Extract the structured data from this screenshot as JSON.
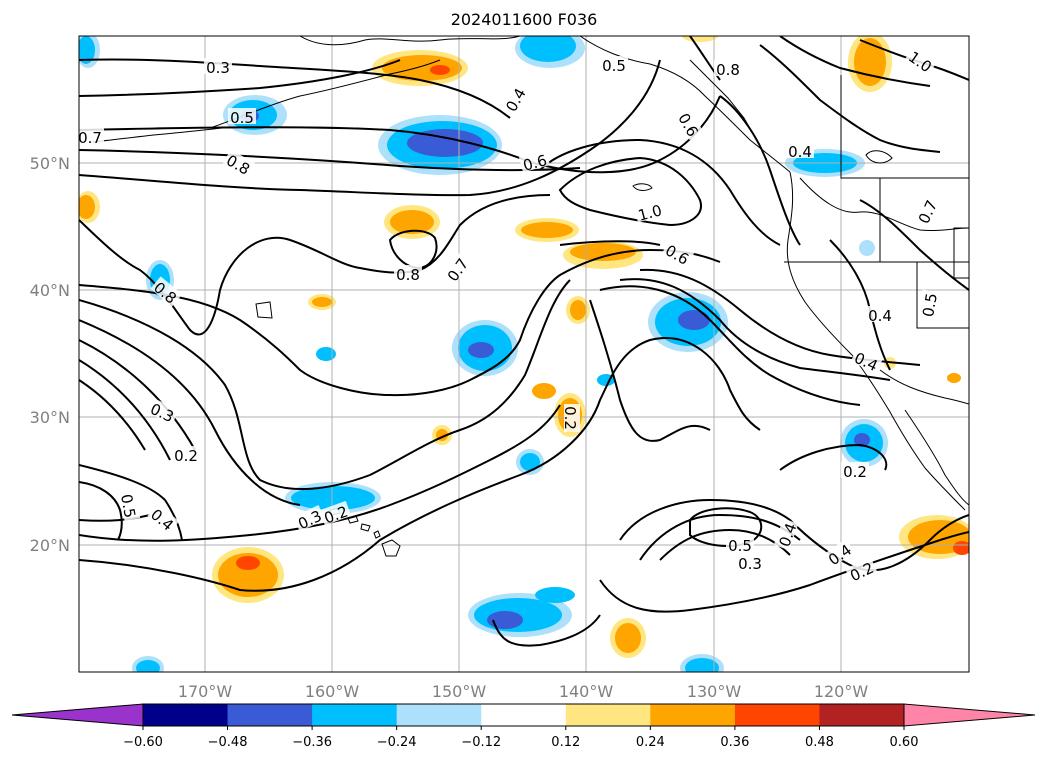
{
  "title": "2024011600 F036",
  "map": {
    "lat_labels": [
      "50°N",
      "40°N",
      "30°N",
      "20°N"
    ],
    "lon_labels": [
      "170°W",
      "160°W",
      "150°W",
      "140°W",
      "130°W",
      "120°W"
    ],
    "grid": true,
    "contour_labels": [
      "0.3",
      "0.4",
      "0.5",
      "0.8",
      "1.0",
      "0.5",
      "0.7",
      "0.8",
      "0.6",
      "0.6",
      "0.4",
      "1.0",
      "0.7",
      "0.6",
      "0.8",
      "0.7",
      "0.8",
      "0.4",
      "0.5",
      "0.4",
      "0.2",
      "0.3",
      "0.2",
      "0.2",
      "0.5",
      "0.4",
      "0.3",
      "0.5",
      "0.4",
      "0.3",
      "0.4",
      "0.2",
      "0.2"
    ]
  },
  "colorbar": {
    "ticks": [
      "−0.60",
      "−0.48",
      "−0.36",
      "−0.24",
      "−0.12",
      "0.12",
      "0.24",
      "0.36",
      "0.48",
      "0.60"
    ],
    "colors": [
      "#9933cc",
      "#00008b",
      "#3a5bd6",
      "#00bfff",
      "#ade0fa",
      "#ffffff",
      "#ffe680",
      "#ffa500",
      "#ff4500",
      "#b22222",
      "#ff85a8"
    ]
  },
  "colors": {
    "coast": "#000000",
    "contour": "#000000",
    "grid": "#b0b0b0",
    "neg_light": "#ade0fa",
    "neg_mid": "#00bfff",
    "neg_strong": "#3a5bd6",
    "pos_light": "#ffe680",
    "pos_mid": "#ffa500",
    "pos_strong": "#ff4500"
  }
}
